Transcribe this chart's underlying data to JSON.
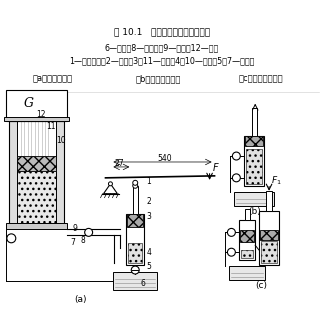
{
  "title": "图 10.1   液压千斤顶的工作原理图",
  "caption_a": "（a）工作原理图",
  "caption_b": "（b）泵的吸油过程",
  "caption_c": "（c）泵的压油过程",
  "label_line1": "1—杠杆手柄；2—泵体；3，11—活塞；4，10—油腔；5，7—单向阀",
  "label_line2": "6—油箱；8—放油阀；9—油管；12—缸体",
  "bg_color": "#ffffff",
  "line_color": "#000000",
  "figsize": [
    3.25,
    3.21
  ],
  "dpi": 100
}
